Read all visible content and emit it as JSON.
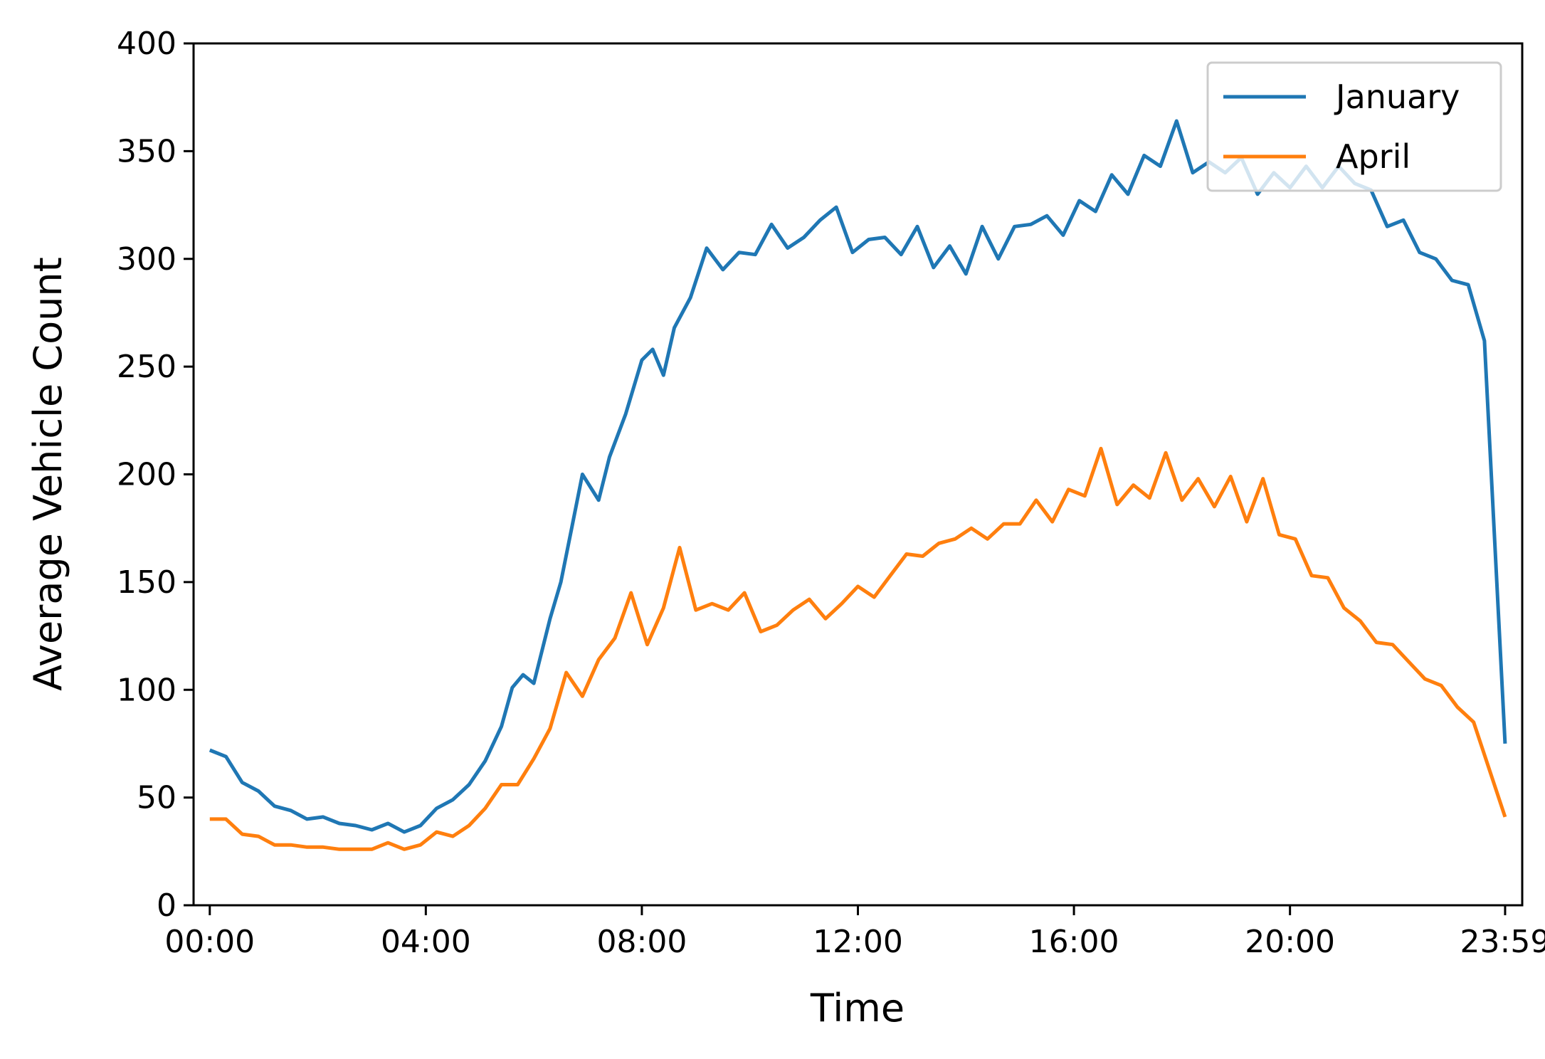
{
  "chart_data": {
    "type": "line",
    "title": "",
    "xlabel": "Time",
    "ylabel": "Average Vehicle Count",
    "xlim": [
      -0.3,
      24.3
    ],
    "ylim": [
      0,
      400
    ],
    "x_ticks": [
      {
        "value": 0,
        "label": "00:00"
      },
      {
        "value": 4,
        "label": "04:00"
      },
      {
        "value": 8,
        "label": "08:00"
      },
      {
        "value": 12,
        "label": "12:00"
      },
      {
        "value": 16,
        "label": "16:00"
      },
      {
        "value": 20,
        "label": "20:00"
      },
      {
        "value": 23.983,
        "label": "23:59"
      }
    ],
    "y_ticks": [
      0,
      50,
      100,
      150,
      200,
      250,
      300,
      350,
      400
    ],
    "grid": false,
    "legend_position": "top-right",
    "series": [
      {
        "name": "January",
        "color": "#1f77b4",
        "points": [
          [
            0.0,
            72
          ],
          [
            0.3,
            69
          ],
          [
            0.6,
            57
          ],
          [
            0.9,
            53
          ],
          [
            1.2,
            46
          ],
          [
            1.5,
            44
          ],
          [
            1.8,
            40
          ],
          [
            2.1,
            41
          ],
          [
            2.4,
            38
          ],
          [
            2.7,
            37
          ],
          [
            3.0,
            35
          ],
          [
            3.3,
            38
          ],
          [
            3.6,
            34
          ],
          [
            3.9,
            37
          ],
          [
            4.2,
            45
          ],
          [
            4.5,
            49
          ],
          [
            4.8,
            56
          ],
          [
            5.1,
            67
          ],
          [
            5.4,
            83
          ],
          [
            5.6,
            101
          ],
          [
            5.8,
            107
          ],
          [
            6.0,
            103
          ],
          [
            6.3,
            133
          ],
          [
            6.5,
            150
          ],
          [
            6.7,
            175
          ],
          [
            6.9,
            200
          ],
          [
            7.2,
            188
          ],
          [
            7.4,
            208
          ],
          [
            7.7,
            228
          ],
          [
            8.0,
            253
          ],
          [
            8.2,
            258
          ],
          [
            8.4,
            246
          ],
          [
            8.6,
            268
          ],
          [
            8.9,
            282
          ],
          [
            9.2,
            305
          ],
          [
            9.5,
            295
          ],
          [
            9.8,
            303
          ],
          [
            10.1,
            302
          ],
          [
            10.4,
            316
          ],
          [
            10.7,
            305
          ],
          [
            11.0,
            310
          ],
          [
            11.3,
            318
          ],
          [
            11.6,
            324
          ],
          [
            11.9,
            303
          ],
          [
            12.2,
            309
          ],
          [
            12.5,
            310
          ],
          [
            12.8,
            302
          ],
          [
            13.1,
            315
          ],
          [
            13.4,
            296
          ],
          [
            13.7,
            306
          ],
          [
            14.0,
            293
          ],
          [
            14.3,
            315
          ],
          [
            14.6,
            300
          ],
          [
            14.9,
            315
          ],
          [
            15.2,
            316
          ],
          [
            15.5,
            320
          ],
          [
            15.8,
            311
          ],
          [
            16.1,
            327
          ],
          [
            16.4,
            322
          ],
          [
            16.7,
            339
          ],
          [
            17.0,
            330
          ],
          [
            17.3,
            348
          ],
          [
            17.6,
            343
          ],
          [
            17.9,
            364
          ],
          [
            18.2,
            340
          ],
          [
            18.5,
            345
          ],
          [
            18.8,
            340
          ],
          [
            19.1,
            347
          ],
          [
            19.4,
            330
          ],
          [
            19.7,
            340
          ],
          [
            20.0,
            333
          ],
          [
            20.3,
            343
          ],
          [
            20.6,
            333
          ],
          [
            20.9,
            343
          ],
          [
            21.2,
            335
          ],
          [
            21.5,
            332
          ],
          [
            21.8,
            315
          ],
          [
            22.1,
            318
          ],
          [
            22.4,
            303
          ],
          [
            22.7,
            300
          ],
          [
            23.0,
            290
          ],
          [
            23.3,
            288
          ],
          [
            23.6,
            262
          ],
          [
            23.983,
            75
          ]
        ]
      },
      {
        "name": "April",
        "color": "#ff7f0e",
        "points": [
          [
            0.0,
            40
          ],
          [
            0.3,
            40
          ],
          [
            0.6,
            33
          ],
          [
            0.9,
            32
          ],
          [
            1.2,
            28
          ],
          [
            1.5,
            28
          ],
          [
            1.8,
            27
          ],
          [
            2.1,
            27
          ],
          [
            2.4,
            26
          ],
          [
            2.7,
            26
          ],
          [
            3.0,
            26
          ],
          [
            3.3,
            29
          ],
          [
            3.6,
            26
          ],
          [
            3.9,
            28
          ],
          [
            4.2,
            34
          ],
          [
            4.5,
            32
          ],
          [
            4.8,
            37
          ],
          [
            5.1,
            45
          ],
          [
            5.4,
            56
          ],
          [
            5.7,
            56
          ],
          [
            6.0,
            68
          ],
          [
            6.3,
            82
          ],
          [
            6.6,
            108
          ],
          [
            6.9,
            97
          ],
          [
            7.2,
            114
          ],
          [
            7.5,
            124
          ],
          [
            7.8,
            145
          ],
          [
            8.1,
            121
          ],
          [
            8.4,
            138
          ],
          [
            8.7,
            166
          ],
          [
            9.0,
            137
          ],
          [
            9.3,
            140
          ],
          [
            9.6,
            137
          ],
          [
            9.9,
            145
          ],
          [
            10.2,
            127
          ],
          [
            10.5,
            130
          ],
          [
            10.8,
            137
          ],
          [
            11.1,
            142
          ],
          [
            11.4,
            133
          ],
          [
            11.7,
            140
          ],
          [
            12.0,
            148
          ],
          [
            12.3,
            143
          ],
          [
            12.6,
            153
          ],
          [
            12.9,
            163
          ],
          [
            13.2,
            162
          ],
          [
            13.5,
            168
          ],
          [
            13.8,
            170
          ],
          [
            14.1,
            175
          ],
          [
            14.4,
            170
          ],
          [
            14.7,
            177
          ],
          [
            15.0,
            177
          ],
          [
            15.3,
            188
          ],
          [
            15.6,
            178
          ],
          [
            15.9,
            193
          ],
          [
            16.2,
            190
          ],
          [
            16.5,
            212
          ],
          [
            16.8,
            186
          ],
          [
            17.1,
            195
          ],
          [
            17.4,
            189
          ],
          [
            17.7,
            210
          ],
          [
            18.0,
            188
          ],
          [
            18.3,
            198
          ],
          [
            18.6,
            185
          ],
          [
            18.9,
            199
          ],
          [
            19.2,
            178
          ],
          [
            19.5,
            198
          ],
          [
            19.8,
            172
          ],
          [
            20.1,
            170
          ],
          [
            20.4,
            153
          ],
          [
            20.7,
            152
          ],
          [
            21.0,
            138
          ],
          [
            21.3,
            132
          ],
          [
            21.6,
            122
          ],
          [
            21.9,
            121
          ],
          [
            22.2,
            113
          ],
          [
            22.5,
            105
          ],
          [
            22.8,
            102
          ],
          [
            23.1,
            92
          ],
          [
            23.4,
            85
          ],
          [
            23.983,
            41
          ]
        ]
      }
    ]
  }
}
